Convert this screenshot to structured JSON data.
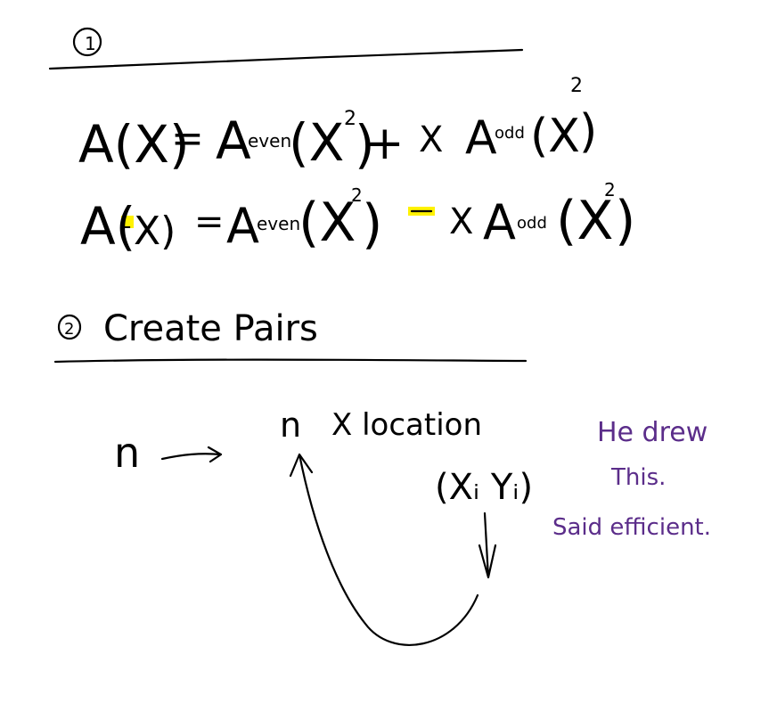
{
  "section1": {
    "number": "1",
    "eq1": {
      "lhs": "A(X)",
      "eq": "=",
      "t1": "A",
      "t1sub": "even",
      "t1arg": "(X",
      "t1sup": "2",
      "t1close": ")",
      "op": "+",
      "x": "X",
      "t2": "A",
      "t2sub": "odd",
      "t2arg": "(X",
      "t2sup": "2",
      "t2close": ")"
    },
    "eq2": {
      "lhs_a": "A(",
      "lhs_minus": "-",
      "lhs_b": "X)",
      "eq": "=",
      "t1": "A",
      "t1sub": "even",
      "t1arg": "(X",
      "t1sup": "2",
      "t1close": ")",
      "op": "−",
      "x": "X",
      "t2": "A",
      "t2sub": "odd",
      "t2arg": "(X",
      "t2sup": "2",
      "t2close": ")"
    }
  },
  "section2": {
    "number": "2",
    "title": "Create Pairs",
    "n_left": "n",
    "n_node": "n",
    "x_location": "X location",
    "pair": "(Xᵢ Yᵢ)"
  },
  "note": {
    "line1": "He drew",
    "line2": "This.",
    "line3": "Said efficient."
  },
  "colors": {
    "ink": "#000000",
    "highlight": "#fff200",
    "note": "#5b2d8a"
  }
}
